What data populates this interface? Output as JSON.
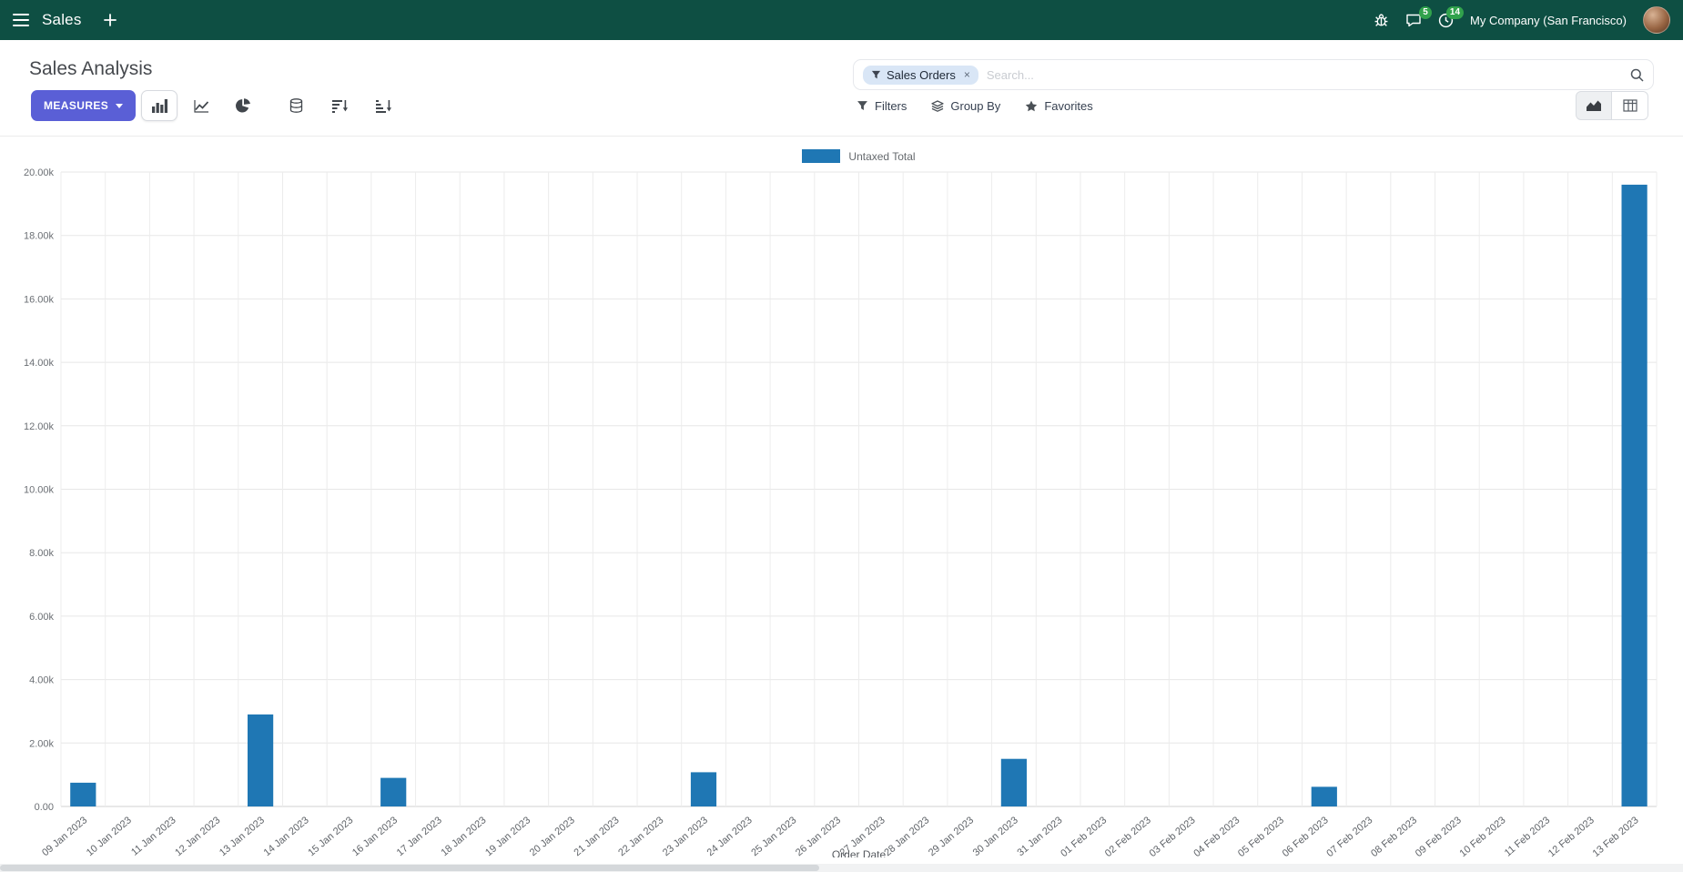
{
  "colors": {
    "top_bar": "#0e4f43",
    "primary_button": "#5a5fd6",
    "bar_series": "#1f77b4",
    "badge_green": "#31a24c",
    "facet_bg": "#d9e6f6"
  },
  "icons": {
    "menu": "hamburger",
    "plus": "+",
    "bug": "debug-bug",
    "messages": "speech-bubble",
    "activities": "clock",
    "filter": "funnel",
    "group_by": "layers",
    "favorites": "star",
    "search": "magnifier",
    "bar_chart": "bars",
    "line_chart": "polyline",
    "pie_chart": "pie",
    "stacked": "database",
    "sort_desc": "sort-amount-desc",
    "sort_asc": "sort-amount-asc",
    "graph_view": "area-chart",
    "pivot_view": "table-grid"
  },
  "top_bar": {
    "app_name": "Sales",
    "message_badge": "5",
    "activity_badge": "14",
    "company": "My Company (San Francisco)"
  },
  "control_panel": {
    "title": "Sales Analysis",
    "search": {
      "facet_label": "Sales Orders",
      "remove": "×",
      "placeholder": "Search..."
    },
    "measures_label": "MEASURES",
    "filters_label": "Filters",
    "group_by_label": "Group By",
    "favorites_label": "Favorites"
  },
  "chart_data": {
    "type": "bar",
    "title": "",
    "legend": [
      "Untaxed Total"
    ],
    "legend_position": "top-center",
    "series_color": "#1f77b4",
    "grid": true,
    "xlabel": "Order Date",
    "ylabel": "",
    "ylim": [
      0,
      20000
    ],
    "ytick_step": 2000,
    "ytick_labels": [
      "0.00",
      "2.00k",
      "4.00k",
      "6.00k",
      "8.00k",
      "10.00k",
      "12.00k",
      "14.00k",
      "16.00k",
      "18.00k",
      "20.00k"
    ],
    "categories": [
      "09 Jan 2023",
      "10 Jan 2023",
      "11 Jan 2023",
      "12 Jan 2023",
      "13 Jan 2023",
      "14 Jan 2023",
      "15 Jan 2023",
      "16 Jan 2023",
      "17 Jan 2023",
      "18 Jan 2023",
      "19 Jan 2023",
      "20 Jan 2023",
      "21 Jan 2023",
      "22 Jan 2023",
      "23 Jan 2023",
      "24 Jan 2023",
      "25 Jan 2023",
      "26 Jan 2023",
      "27 Jan 2023",
      "28 Jan 2023",
      "29 Jan 2023",
      "30 Jan 2023",
      "31 Jan 2023",
      "01 Feb 2023",
      "02 Feb 2023",
      "03 Feb 2023",
      "04 Feb 2023",
      "05 Feb 2023",
      "06 Feb 2023",
      "07 Feb 2023",
      "08 Feb 2023",
      "09 Feb 2023",
      "10 Feb 2023",
      "11 Feb 2023",
      "12 Feb 2023",
      "13 Feb 2023"
    ],
    "series": [
      {
        "name": "Untaxed Total",
        "values": [
          750,
          0,
          0,
          0,
          2900,
          0,
          0,
          900,
          0,
          0,
          0,
          0,
          0,
          0,
          1080,
          0,
          0,
          0,
          0,
          0,
          0,
          1500,
          0,
          0,
          0,
          0,
          0,
          0,
          620,
          0,
          0,
          0,
          0,
          0,
          0,
          19600
        ]
      }
    ]
  }
}
